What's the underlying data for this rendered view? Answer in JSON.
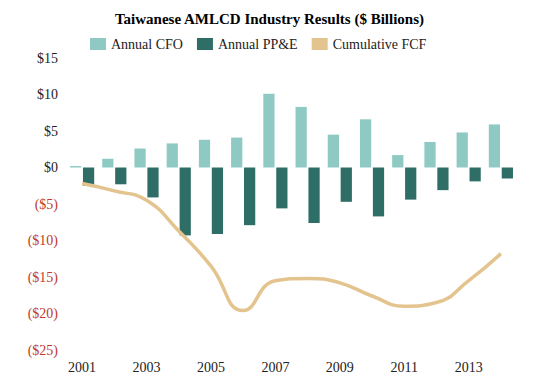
{
  "chart_data": {
    "type": "bar",
    "title": "Taiwanese AMLCD Industry Results ($ Billions)",
    "categories": [
      "2001",
      null,
      "2003",
      null,
      "2005",
      null,
      "2007",
      null,
      "2009",
      null,
      "2011",
      null,
      "2013",
      null
    ],
    "series": [
      {
        "name": "Annual CFO",
        "type": "bar",
        "color": "#8ecac3",
        "values": [
          0.2,
          1.2,
          2.6,
          3.3,
          3.8,
          4.1,
          10.1,
          8.3,
          4.5,
          6.6,
          1.7,
          3.5,
          4.8,
          5.9
        ]
      },
      {
        "name": "Annual PP&E",
        "type": "bar",
        "color": "#2f6e66",
        "values": [
          -2.5,
          -2.3,
          -4.1,
          -9.3,
          -9.1,
          -7.9,
          -5.6,
          -7.6,
          -4.7,
          -6.7,
          -4.4,
          -3.1,
          -1.9,
          -1.5
        ]
      },
      {
        "name": "Cumulative FCF",
        "type": "line",
        "color": "#e4c48e",
        "marker": "none",
        "line_style": "solid",
        "values": [
          -2.2,
          -3.2,
          -4.5,
          -8.7,
          -13.5,
          -19.6,
          -15.5,
          -15.2,
          -15.8,
          -17.6,
          -19.0,
          -18.5,
          -15.5,
          -11.8
        ]
      }
    ],
    "ylim": [
      -25,
      15
    ],
    "yticks": [
      {
        "value": -25,
        "label": "($25)"
      },
      {
        "value": -20,
        "label": "($20)"
      },
      {
        "value": -15,
        "label": "($15)"
      },
      {
        "value": -10,
        "label": "($10)"
      },
      {
        "value": -5,
        "label": "($5)"
      },
      {
        "value": 0,
        "label": "$0"
      },
      {
        "value": 5,
        "label": "$5"
      },
      {
        "value": 10,
        "label": "$10"
      },
      {
        "value": 15,
        "label": "$15"
      }
    ],
    "grid": false,
    "legend": "top"
  }
}
